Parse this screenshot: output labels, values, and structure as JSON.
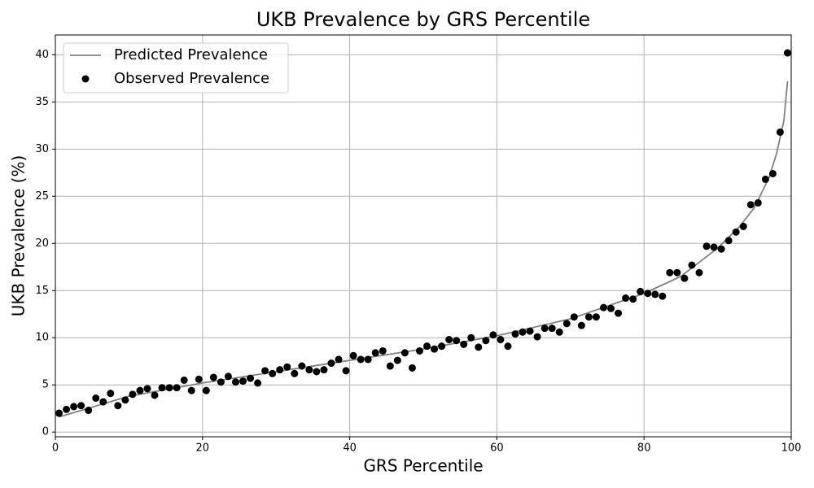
{
  "chart_data": {
    "type": "line",
    "title": "UKB Prevalence by GRS Percentile",
    "x_label": "GRS Percentile",
    "y_label": "UKB Prevalence (%)",
    "xlim": [
      0,
      100
    ],
    "ylim": [
      -0.5,
      42.1
    ],
    "xticks": [
      0,
      20,
      40,
      60,
      80,
      100
    ],
    "yticks": [
      0,
      5,
      10,
      15,
      20,
      25,
      30,
      35,
      40
    ],
    "grid": true,
    "legend": "upper-left",
    "series": [
      {
        "name": "Predicted Prevalence",
        "color": "#808080",
        "type": "line",
        "x": [
          0.5,
          10,
          20,
          30,
          40,
          50,
          60,
          70,
          80,
          85,
          90,
          93,
          95,
          97,
          98,
          99,
          99.5
        ],
        "values": [
          1.6,
          3.8,
          5.2,
          6.4,
          7.6,
          8.8,
          10.2,
          12.0,
          14.7,
          16.5,
          19.5,
          21.8,
          23.8,
          27.0,
          29.5,
          33.0,
          37.2
        ]
      },
      {
        "name": "Observed Prevalence",
        "color": "#000000",
        "type": "scatter",
        "x": [
          0.5,
          1.5,
          2.5,
          3.5,
          4.5,
          5.5,
          6.5,
          7.5,
          8.5,
          9.5,
          10.5,
          11.5,
          12.5,
          13.5,
          14.5,
          15.5,
          16.5,
          17.5,
          18.5,
          19.5,
          20.5,
          21.5,
          22.5,
          23.5,
          24.5,
          25.5,
          26.5,
          27.5,
          28.5,
          29.5,
          30.5,
          31.5,
          32.5,
          33.5,
          34.5,
          35.5,
          36.5,
          37.5,
          38.5,
          39.5,
          40.5,
          41.5,
          42.5,
          43.5,
          44.5,
          45.5,
          46.5,
          47.5,
          48.5,
          49.5,
          50.5,
          51.5,
          52.5,
          53.5,
          54.5,
          55.5,
          56.5,
          57.5,
          58.5,
          59.5,
          60.5,
          61.5,
          62.5,
          63.5,
          64.5,
          65.5,
          66.5,
          67.5,
          68.5,
          69.5,
          70.5,
          71.5,
          72.5,
          73.5,
          74.5,
          75.5,
          76.5,
          77.5,
          78.5,
          79.5,
          80.5,
          81.5,
          82.5,
          83.5,
          84.5,
          85.5,
          86.5,
          87.5,
          88.5,
          89.5,
          90.5,
          91.5,
          92.5,
          93.5,
          94.5,
          95.5,
          96.5,
          97.5,
          98.5,
          99.5
        ],
        "values": [
          2.0,
          2.4,
          2.7,
          2.8,
          2.3,
          3.6,
          3.2,
          4.1,
          2.8,
          3.4,
          4.0,
          4.4,
          4.6,
          3.9,
          4.7,
          4.7,
          4.7,
          5.5,
          4.4,
          5.6,
          4.4,
          5.8,
          5.3,
          5.9,
          5.3,
          5.4,
          5.7,
          5.2,
          6.5,
          6.2,
          6.6,
          6.9,
          6.2,
          7.0,
          6.6,
          6.4,
          6.6,
          7.3,
          7.7,
          6.5,
          8.1,
          7.7,
          7.7,
          8.4,
          8.6,
          7.0,
          7.6,
          8.4,
          6.8,
          8.6,
          9.1,
          8.8,
          9.1,
          9.8,
          9.7,
          9.3,
          10.0,
          9.0,
          9.7,
          10.3,
          9.8,
          9.1,
          10.4,
          10.6,
          10.7,
          10.1,
          11.0,
          11.0,
          10.6,
          11.5,
          12.2,
          11.3,
          12.2,
          12.2,
          13.2,
          13.1,
          12.6,
          14.2,
          14.1,
          14.9,
          14.7,
          14.6,
          14.4,
          16.9,
          16.9,
          16.3,
          17.7,
          16.9,
          19.7,
          19.6,
          19.4,
          20.3,
          21.2,
          21.8,
          24.1,
          24.3,
          26.8,
          27.4,
          31.8,
          40.2
        ]
      }
    ]
  }
}
